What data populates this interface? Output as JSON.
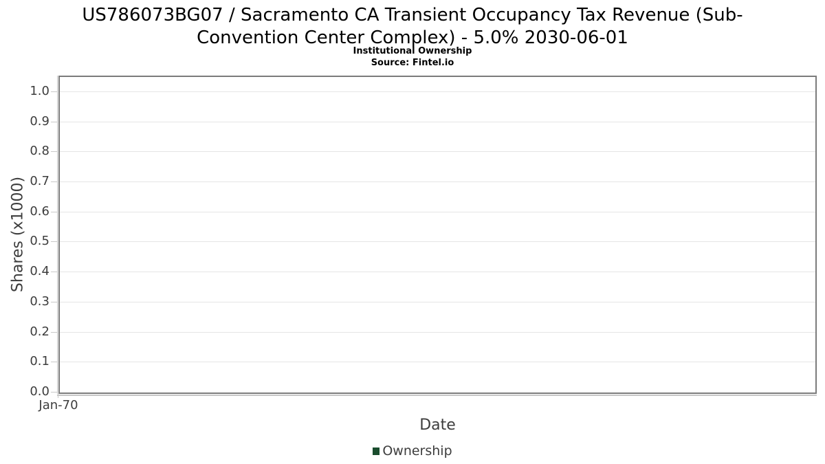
{
  "header": {
    "title_line1": "US786073BG07 / Sacramento CA Transient Occupancy Tax Revenue (Sub-",
    "title_line2": "Convention Center Complex) - 5.0% 2030-06-01",
    "subtitle": "Institutional Ownership",
    "source": "Source: Fintel.io"
  },
  "chart_data": {
    "type": "line",
    "title": "US786073BG07 / Sacramento CA Transient Occupancy Tax Revenue (Sub-Convention Center Complex) - 5.0% 2030-06-01",
    "subtitle": "Institutional Ownership",
    "source": "Source: Fintel.io",
    "xlabel": "Date",
    "ylabel": "Shares (x1000)",
    "x_tick_labels": [
      "Jan-70"
    ],
    "y_ticks": [
      0.0,
      0.1,
      0.2,
      0.3,
      0.4,
      0.5,
      0.6,
      0.7,
      0.8,
      0.9,
      1.0
    ],
    "y_tick_labels": [
      "0.0",
      "0.1",
      "0.2",
      "0.3",
      "0.4",
      "0.5",
      "0.6",
      "0.7",
      "0.8",
      "0.9",
      "1.0"
    ],
    "ylim": [
      0.0,
      1.05
    ],
    "grid": true,
    "legend_position": "bottom-center",
    "series": [
      {
        "name": "Ownership",
        "color": "#1a4d2e",
        "x": [],
        "values": []
      }
    ]
  },
  "legend": {
    "items": [
      {
        "label": "Ownership",
        "color": "#1a4d2e"
      }
    ]
  },
  "colors": {
    "title_text": "#000000",
    "axis_text": "#3d3d3d",
    "plot_border": "#7b7b7b",
    "gridline": "#e5e5e5",
    "axis_line": "#c6c6c6",
    "legend_marker": "#1a4d2e"
  }
}
